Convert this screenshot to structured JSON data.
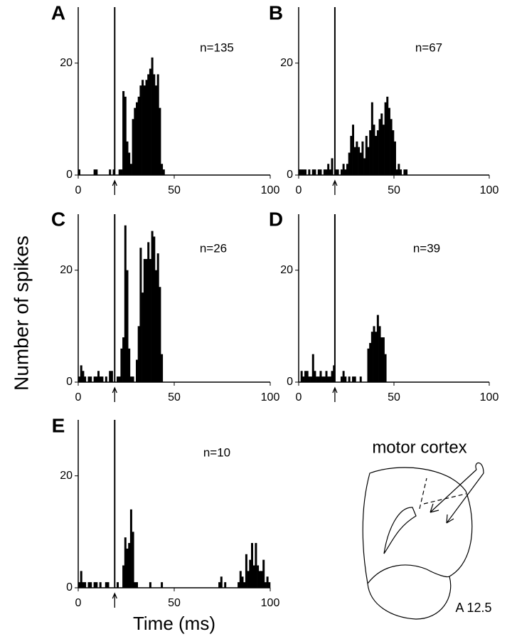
{
  "y_label": "Number of spikes",
  "x_label": "Time (ms)",
  "diagram": {
    "title": "motor cortex",
    "label": "A 12.5"
  },
  "chart_data": [
    {
      "type": "histogram",
      "panel_label": "A",
      "annotation": "n=135",
      "color": "#000000",
      "stimulus": 19,
      "xlim": [
        0,
        100
      ],
      "ylim": [
        0,
        30
      ],
      "xticks": [
        0,
        50,
        100
      ],
      "yticks": [
        0,
        20
      ],
      "bins": [
        0,
        1,
        2,
        3,
        4,
        5,
        6,
        7,
        8,
        9,
        10,
        11,
        12,
        13,
        14,
        15,
        16,
        17,
        18,
        19,
        20,
        21,
        22,
        23,
        24,
        25,
        26,
        27,
        28,
        29,
        30,
        31,
        32,
        33,
        34,
        35,
        36,
        37,
        38,
        39,
        40,
        41,
        42,
        43,
        44,
        45,
        46,
        47,
        48,
        49,
        50,
        51,
        52,
        53,
        54,
        55,
        56,
        57,
        58,
        59,
        60
      ],
      "counts": [
        1,
        0,
        0,
        0,
        0,
        0,
        0,
        0,
        1,
        1,
        0,
        0,
        0,
        0,
        0,
        0,
        1,
        0,
        1,
        0,
        0,
        1,
        1,
        15,
        14,
        6,
        4,
        2,
        10,
        12,
        13,
        14,
        16,
        17,
        16,
        17,
        18,
        19,
        21,
        18,
        16,
        18,
        12,
        2,
        1,
        0,
        0,
        0,
        0,
        0,
        0,
        0,
        0,
        0,
        0,
        0,
        0,
        0,
        0,
        0
      ]
    },
    {
      "type": "histogram",
      "panel_label": "B",
      "annotation": "n=67",
      "color": "#000000",
      "stimulus": 19,
      "xlim": [
        0,
        100
      ],
      "ylim": [
        0,
        30
      ],
      "xticks": [
        0,
        50,
        100
      ],
      "yticks": [
        0,
        20
      ],
      "bins": [
        0,
        1,
        2,
        3,
        4,
        5,
        6,
        7,
        8,
        9,
        10,
        11,
        12,
        13,
        14,
        15,
        16,
        17,
        18,
        19,
        20,
        21,
        22,
        23,
        24,
        25,
        26,
        27,
        28,
        29,
        30,
        31,
        32,
        33,
        34,
        35,
        36,
        37,
        38,
        39,
        40,
        41,
        42,
        43,
        44,
        45,
        46,
        47,
        48,
        49,
        50,
        51,
        52,
        53,
        54,
        55,
        56,
        57,
        58,
        59,
        60
      ],
      "counts": [
        1,
        1,
        1,
        1,
        0,
        1,
        0,
        1,
        1,
        0,
        1,
        1,
        0,
        1,
        1,
        2,
        1,
        3,
        0,
        1,
        1,
        0,
        1,
        2,
        1,
        2,
        4,
        7,
        9,
        5,
        6,
        5,
        4,
        6,
        3,
        7,
        5,
        8,
        13,
        9,
        7,
        8,
        10,
        11,
        9,
        13,
        14,
        12,
        10,
        8,
        6,
        1,
        2,
        1,
        0,
        1,
        1,
        0,
        0,
        0
      ]
    },
    {
      "type": "histogram",
      "panel_label": "C",
      "annotation": "n=26",
      "color": "#000000",
      "stimulus": 19,
      "xlim": [
        0,
        100
      ],
      "ylim": [
        0,
        30
      ],
      "xticks": [
        0,
        50,
        100
      ],
      "yticks": [
        0,
        20
      ],
      "bins": [
        0,
        1,
        2,
        3,
        4,
        5,
        6,
        7,
        8,
        9,
        10,
        11,
        12,
        13,
        14,
        15,
        16,
        17,
        18,
        19,
        20,
        21,
        22,
        23,
        24,
        25,
        26,
        27,
        28,
        29,
        30,
        31,
        32,
        33,
        34,
        35,
        36,
        37,
        38,
        39,
        40,
        41,
        42,
        43,
        44,
        45,
        46,
        47,
        48,
        49,
        50,
        51,
        52,
        53,
        54,
        55,
        56,
        57,
        58,
        59,
        60
      ],
      "counts": [
        1,
        3,
        2,
        1,
        0,
        1,
        1,
        0,
        1,
        1,
        2,
        1,
        1,
        0,
        1,
        0,
        2,
        2,
        0,
        0,
        1,
        1,
        6,
        8,
        28,
        20,
        6,
        1,
        1,
        0,
        4,
        10,
        24,
        16,
        22,
        22,
        25,
        22,
        27,
        26,
        20,
        23,
        17,
        5,
        0,
        0,
        0,
        0,
        0,
        0,
        0,
        0,
        0,
        0,
        0,
        0,
        0,
        0,
        0,
        0
      ]
    },
    {
      "type": "histogram",
      "panel_label": "D",
      "annotation": "n=39",
      "color": "#000000",
      "stimulus": 19,
      "xlim": [
        0,
        100
      ],
      "ylim": [
        0,
        30
      ],
      "xticks": [
        0,
        50,
        100
      ],
      "yticks": [
        0,
        20
      ],
      "bins": [
        0,
        1,
        2,
        3,
        4,
        5,
        6,
        7,
        8,
        9,
        10,
        11,
        12,
        13,
        14,
        15,
        16,
        17,
        18,
        19,
        20,
        21,
        22,
        23,
        24,
        25,
        26,
        27,
        28,
        29,
        30,
        31,
        32,
        33,
        34,
        35,
        36,
        37,
        38,
        39,
        40,
        41,
        42,
        43,
        44,
        45,
        46,
        47,
        48,
        49,
        50,
        51,
        52,
        53,
        54,
        55,
        56,
        57,
        58,
        59,
        60
      ],
      "counts": [
        0,
        2,
        1,
        2,
        2,
        1,
        1,
        5,
        2,
        1,
        1,
        2,
        1,
        1,
        2,
        1,
        1,
        2,
        3,
        0,
        0,
        0,
        1,
        2,
        1,
        0,
        1,
        0,
        1,
        1,
        0,
        0,
        1,
        0,
        0,
        0,
        6,
        7,
        9,
        10,
        9,
        12,
        10,
        8,
        8,
        5,
        0,
        0,
        0,
        0,
        0,
        0,
        0,
        0,
        0,
        0,
        0,
        0,
        0,
        0
      ]
    },
    {
      "type": "histogram",
      "panel_label": "E",
      "annotation": "n=10",
      "color": "#000000",
      "stimulus": 19,
      "xlim": [
        0,
        100
      ],
      "ylim": [
        0,
        30
      ],
      "xticks": [
        0,
        50,
        100
      ],
      "yticks": [
        0,
        20
      ],
      "bins": [
        0,
        1,
        2,
        3,
        4,
        5,
        6,
        7,
        8,
        9,
        10,
        11,
        12,
        13,
        14,
        15,
        16,
        17,
        18,
        19,
        20,
        21,
        22,
        23,
        24,
        25,
        26,
        27,
        28,
        29,
        30,
        31,
        32,
        33,
        34,
        35,
        36,
        37,
        38,
        39,
        40,
        41,
        42,
        43,
        44,
        45,
        46,
        47,
        48,
        49,
        50,
        51,
        52,
        53,
        54,
        55,
        56,
        57,
        58,
        59,
        60,
        61,
        62,
        63,
        64,
        65,
        66,
        67,
        68,
        69,
        70,
        71,
        72,
        73,
        74,
        75,
        76,
        77,
        78,
        79,
        80,
        81,
        82,
        83,
        84,
        85,
        86,
        87,
        88,
        89,
        90,
        91,
        92,
        93,
        94,
        95,
        96,
        97,
        98,
        99,
        100
      ],
      "counts": [
        1,
        3,
        1,
        1,
        0,
        1,
        1,
        0,
        1,
        1,
        0,
        1,
        0,
        0,
        1,
        1,
        0,
        0,
        0,
        0,
        1,
        0,
        0,
        4,
        9,
        7,
        8,
        14,
        10,
        1,
        1,
        0,
        0,
        0,
        0,
        0,
        0,
        1,
        0,
        0,
        0,
        0,
        0,
        1,
        0,
        0,
        0,
        0,
        0,
        0,
        0,
        0,
        0,
        0,
        0,
        0,
        0,
        0,
        0,
        0,
        0,
        0,
        0,
        0,
        0,
        0,
        0,
        0,
        0,
        0,
        0,
        0,
        0,
        1,
        2,
        0,
        1,
        0,
        0,
        0,
        0,
        0,
        0,
        1,
        3,
        2,
        1,
        6,
        3,
        5,
        8,
        4,
        8,
        4,
        3,
        3,
        5,
        1,
        2,
        1
      ]
    }
  ]
}
